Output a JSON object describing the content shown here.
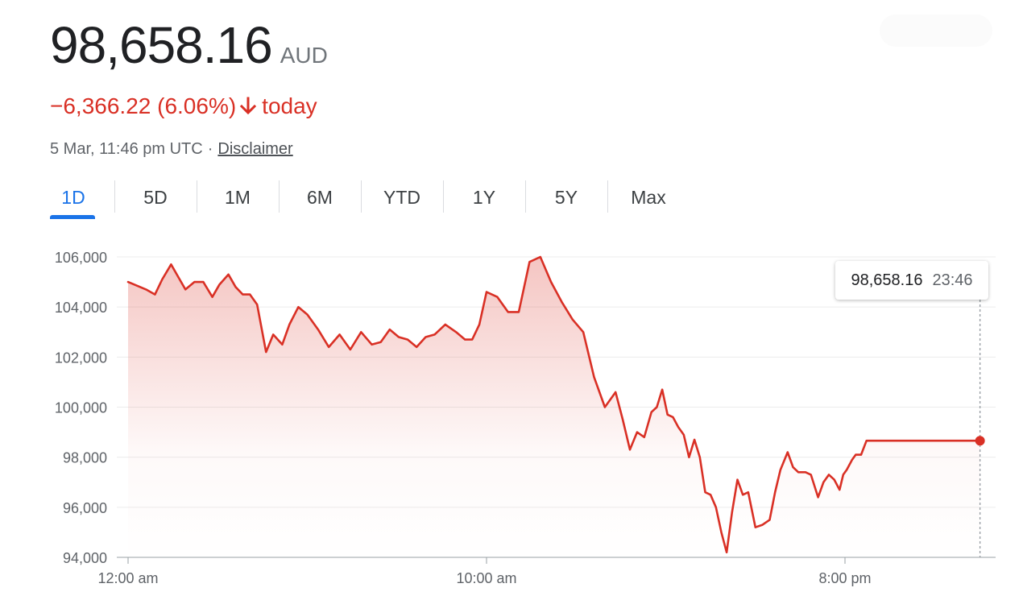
{
  "header": {
    "price": "98,658.16",
    "currency": "AUD",
    "change": "−6,366.22 (6.06%)",
    "change_suffix": "today",
    "timestamp": "5 Mar, 11:46 pm UTC",
    "separator": "·",
    "disclaimer": "Disclaimer"
  },
  "colors": {
    "negative": "#d93025",
    "accent": "#1a73e8"
  },
  "tabs": [
    {
      "label": "1D",
      "active": true
    },
    {
      "label": "5D",
      "active": false
    },
    {
      "label": "1M",
      "active": false
    },
    {
      "label": "6M",
      "active": false
    },
    {
      "label": "YTD",
      "active": false
    },
    {
      "label": "1Y",
      "active": false
    },
    {
      "label": "5Y",
      "active": false
    },
    {
      "label": "Max",
      "active": false
    }
  ],
  "tooltip": {
    "price": "98,658.16",
    "time": "23:46"
  },
  "chart_data": {
    "type": "area",
    "title": "",
    "xlabel": "",
    "ylabel": "",
    "ylim": [
      94000,
      106000
    ],
    "y_ticks": [
      "106,000",
      "104,000",
      "102,000",
      "100,000",
      "98,000",
      "96,000",
      "94,000"
    ],
    "x_range_hours": [
      0,
      24
    ],
    "x_ticks": [
      {
        "label": "12:00 am",
        "hour": 0
      },
      {
        "label": "10:00 am",
        "hour": 10
      },
      {
        "label": "8:00 pm",
        "hour": 20
      }
    ],
    "grid": true,
    "series": [
      {
        "line_color": "#d93025",
        "x_hours": [
          0,
          0.5,
          0.75,
          0.95,
          1.2,
          1.4,
          1.6,
          1.85,
          2.1,
          2.35,
          2.55,
          2.8,
          3.0,
          3.2,
          3.4,
          3.6,
          3.85,
          4.05,
          4.3,
          4.5,
          4.75,
          5.0,
          5.3,
          5.6,
          5.9,
          6.2,
          6.5,
          6.8,
          7.05,
          7.3,
          7.55,
          7.8,
          8.05,
          8.3,
          8.55,
          8.85,
          9.15,
          9.4,
          9.6,
          9.8,
          10.0,
          10.3,
          10.6,
          10.9,
          11.2,
          11.5,
          11.8,
          12.1,
          12.4,
          12.7,
          13.0,
          13.3,
          13.6,
          13.8,
          14.0,
          14.2,
          14.4,
          14.6,
          14.75,
          14.9,
          15.05,
          15.2,
          15.35,
          15.5,
          15.65,
          15.8,
          15.95,
          16.1,
          16.25,
          16.4,
          16.55,
          16.7,
          16.85,
          17.0,
          17.15,
          17.3,
          17.5,
          17.7,
          17.9,
          18.05,
          18.2,
          18.4,
          18.55,
          18.7,
          18.9,
          19.05,
          19.25,
          19.4,
          19.55,
          19.7,
          19.85,
          19.95,
          20.05,
          20.2,
          20.3,
          20.45,
          20.6,
          20.75,
          20.9,
          21.05,
          21.2,
          21.35,
          21.5,
          21.65,
          21.8,
          21.95,
          22.1,
          22.25,
          22.4,
          22.55,
          22.7,
          22.85,
          23.0,
          23.15,
          23.3,
          23.5,
          23.767
        ],
        "values": [
          105000,
          104700,
          104500,
          105100,
          105700,
          105200,
          104700,
          105000,
          105000,
          104400,
          104900,
          105300,
          104800,
          104500,
          104500,
          104100,
          102200,
          102900,
          102500,
          103300,
          104000,
          103700,
          103100,
          102400,
          102900,
          102300,
          103000,
          102500,
          102600,
          103100,
          102800,
          102700,
          102400,
          102800,
          102900,
          103300,
          103000,
          102700,
          102700,
          103300,
          104600,
          104400,
          103800,
          103800,
          105800,
          106000,
          105000,
          104200,
          103500,
          103000,
          101200,
          100000,
          100600,
          99500,
          98300,
          99000,
          98800,
          99800,
          100000,
          100700,
          99700,
          99600,
          99200,
          98900,
          98000,
          98700,
          98000,
          96600,
          96500,
          96000,
          95000,
          94200,
          95800,
          97100,
          96500,
          96600,
          95200,
          95300,
          95500,
          96600,
          97500,
          98200,
          97600,
          97400,
          97400,
          97300,
          96400,
          97000,
          97300,
          97100,
          96700,
          97300,
          97500,
          97900,
          98100,
          98100,
          98658.16,
          98658.16,
          98658.16,
          98658.16,
          98658.16,
          98658.16,
          98658.16,
          98658.16,
          98658.16,
          98658.16,
          98658.16,
          98658.16,
          98658.16,
          98658.16,
          98658.16,
          98658.16,
          98658.16,
          98658.16,
          98658.16,
          98658.16,
          98658.16
        ]
      }
    ],
    "last_point": {
      "hour": 23.767,
      "value": 98658.16
    }
  }
}
